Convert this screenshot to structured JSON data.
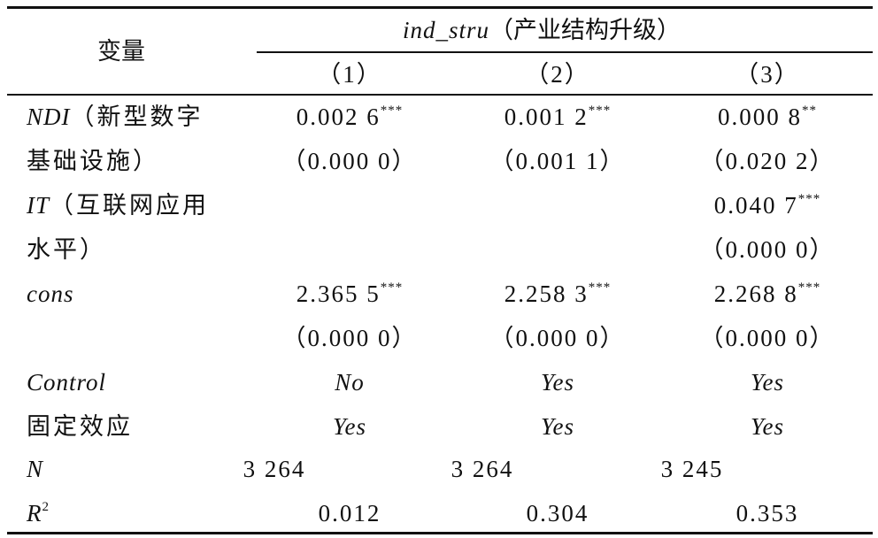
{
  "header": {
    "variable": "变量",
    "group": {
      "var": "ind_stru",
      "desc": "（产业结构升级）"
    },
    "columns": [
      "（1）",
      "（2）",
      "（3）"
    ]
  },
  "rows": [
    {
      "label": {
        "var": "NDI",
        "desc": "（新型数字"
      },
      "cells": [
        {
          "value": "0.002 6",
          "stars": "***"
        },
        {
          "value": "0.001 2",
          "stars": "***"
        },
        {
          "value": "0.000 8",
          "stars": "**"
        }
      ]
    },
    {
      "label": {
        "desc": "基础设施）"
      },
      "cells": [
        {
          "value": "（0.000 0）"
        },
        {
          "value": "（0.001 1）"
        },
        {
          "value": "（0.020 2）"
        }
      ]
    },
    {
      "label": {
        "var": "IT",
        "desc": "（互联网应用"
      },
      "cells": [
        null,
        null,
        {
          "value": "0.040 7",
          "stars": "***"
        }
      ]
    },
    {
      "label": {
        "desc": "水平）"
      },
      "cells": [
        null,
        null,
        {
          "value": "（0.000 0）"
        }
      ]
    },
    {
      "label": {
        "var": "cons"
      },
      "cells": [
        {
          "value": "2.365 5",
          "stars": "***"
        },
        {
          "value": "2.258 3",
          "stars": "***"
        },
        {
          "value": "2.268 8",
          "stars": "***"
        }
      ]
    },
    {
      "label": {},
      "cells": [
        {
          "value": "（0.000 0）"
        },
        {
          "value": "（0.000 0）"
        },
        {
          "value": "（0.000 0）"
        }
      ]
    },
    {
      "label": {
        "var": "Control"
      },
      "cells": [
        {
          "value": "No",
          "italic": true
        },
        {
          "value": "Yes",
          "italic": true
        },
        {
          "value": "Yes",
          "italic": true
        }
      ]
    },
    {
      "label": {
        "desc": "固定效应"
      },
      "cells": [
        {
          "value": "Yes",
          "italic": true
        },
        {
          "value": "Yes",
          "italic": true
        },
        {
          "value": "Yes",
          "italic": true
        }
      ]
    },
    {
      "label": {
        "var": "N"
      },
      "cells": [
        {
          "value": "3 264"
        },
        {
          "value": "3 264"
        },
        {
          "value": "3 245"
        }
      ]
    },
    {
      "label": {
        "var": "R",
        "sup": "2"
      },
      "cells": [
        {
          "value": "0.012"
        },
        {
          "value": "0.304"
        },
        {
          "value": "0.353"
        }
      ]
    }
  ]
}
